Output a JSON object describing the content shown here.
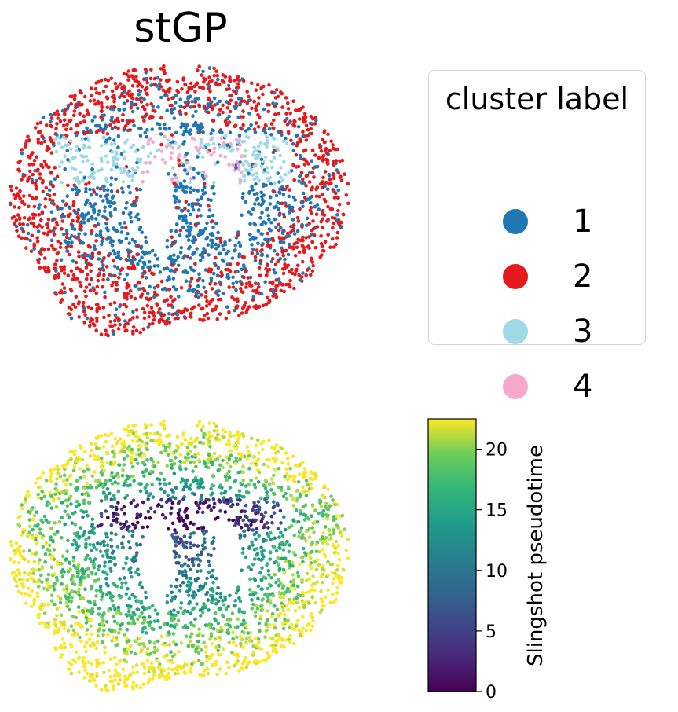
{
  "chart_data": [
    {
      "type": "scatter",
      "title": "stGP",
      "description_of_encoding": "categorical",
      "legend": {
        "title": "cluster label",
        "placement": "right",
        "entries": [
          {
            "label": "1",
            "color": "#1f77b4"
          },
          {
            "label": "2",
            "color": "#e41a1c"
          },
          {
            "label": "3",
            "color": "#9edae5"
          },
          {
            "label": "4",
            "color": "#f7a8cc"
          }
        ]
      },
      "axes_visible": false
    },
    {
      "type": "scatter",
      "colorbar": {
        "label": "Slingshot pseudotime",
        "colormap": "viridis",
        "range": [
          0,
          22.5
        ],
        "ticks": [
          "0",
          "5",
          "10",
          "15",
          "20"
        ],
        "tick_values": [
          0,
          5,
          10,
          15,
          20
        ]
      },
      "axes_visible": false
    }
  ]
}
